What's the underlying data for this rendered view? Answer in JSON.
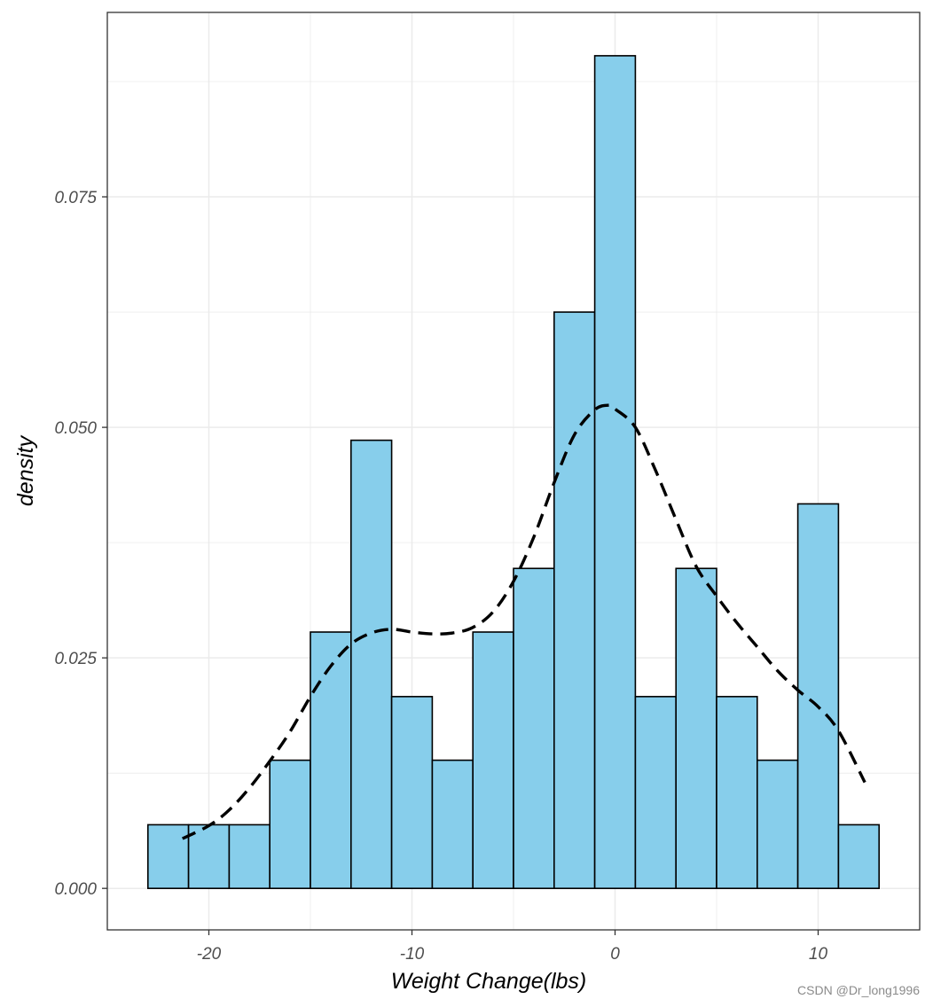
{
  "chart_data": {
    "type": "bar",
    "subtype": "histogram-with-density",
    "title": "",
    "xlabel": "Weight Change(lbs)",
    "ylabel": "density",
    "xlim": [
      -25,
      15
    ],
    "ylim": [
      -0.0045,
      0.095
    ],
    "x_ticks": [
      -20,
      -10,
      0,
      10
    ],
    "x_tick_labels": [
      "-20",
      "-10",
      "0",
      "10"
    ],
    "y_ticks": [
      0.0,
      0.025,
      0.05,
      0.075
    ],
    "y_tick_labels": [
      "0.000",
      "0.025",
      "0.050",
      "0.075"
    ],
    "grid": true,
    "bins": {
      "edges": [
        -23,
        -21,
        -19,
        -17,
        -15,
        -13,
        -11,
        -9,
        -7,
        -5,
        -3,
        -1,
        1,
        3,
        5,
        7,
        9,
        11,
        13
      ],
      "values": [
        0.0069,
        0.0069,
        0.0069,
        0.0139,
        0.0278,
        0.0486,
        0.0208,
        0.0139,
        0.0278,
        0.0347,
        0.0625,
        0.0903,
        0.0208,
        0.0347,
        0.0208,
        0.0139,
        0.0417,
        0.0069
      ]
    },
    "density_line": {
      "style": "dashed",
      "x": [
        -21.3,
        -20,
        -19,
        -18,
        -17,
        -16,
        -15,
        -14,
        -13,
        -12,
        -11,
        -10,
        -9,
        -8,
        -7,
        -6,
        -5,
        -4,
        -3,
        -2,
        -1,
        -0.3,
        0,
        1,
        2,
        3,
        4,
        5,
        6,
        7,
        8,
        9,
        10,
        11,
        12.3
      ],
      "y": [
        0.0054,
        0.0068,
        0.0085,
        0.0109,
        0.0138,
        0.017,
        0.0208,
        0.0241,
        0.0265,
        0.0277,
        0.0281,
        0.0278,
        0.0276,
        0.0277,
        0.0283,
        0.03,
        0.0333,
        0.0381,
        0.044,
        0.0492,
        0.0519,
        0.0524,
        0.052,
        0.05,
        0.0453,
        0.04,
        0.0349,
        0.0317,
        0.0288,
        0.0262,
        0.0236,
        0.0215,
        0.0197,
        0.0171,
        0.0115
      ]
    },
    "colors": {
      "bar_fill": "#87ceeb",
      "bar_stroke": "#000000",
      "density_line": "#000000",
      "grid": "#ebebeb",
      "panel_border": "#333333",
      "tick_label": "#4d4d4d"
    }
  },
  "watermark": "CSDN @Dr_long1996"
}
